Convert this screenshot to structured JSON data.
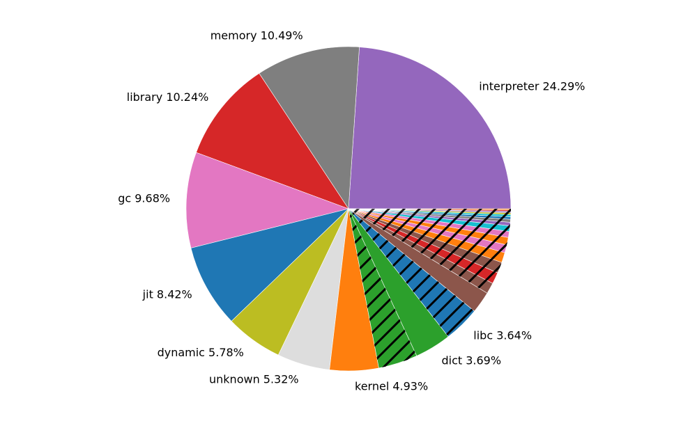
{
  "chart_data": {
    "type": "pie",
    "start_angle_deg": 0,
    "direction": "counterclockwise",
    "slices": [
      {
        "label": "interpreter 24.29%",
        "value": 24.29,
        "color": "#9467bd",
        "hatch": false,
        "show_label": true
      },
      {
        "label": "memory 10.49%",
        "value": 10.49,
        "color": "#7f7f7f",
        "hatch": false,
        "show_label": true
      },
      {
        "label": "library 10.24%",
        "value": 10.24,
        "color": "#d62728",
        "hatch": false,
        "show_label": true
      },
      {
        "label": "gc 9.68%",
        "value": 9.68,
        "color": "#e377c2",
        "hatch": false,
        "show_label": true
      },
      {
        "label": "jit 8.42%",
        "value": 8.42,
        "color": "#1f77b4",
        "hatch": false,
        "show_label": true
      },
      {
        "label": "dynamic 5.78%",
        "value": 5.78,
        "color": "#bcbd22",
        "hatch": false,
        "show_label": true
      },
      {
        "label": "unknown 5.32%",
        "value": 5.32,
        "color": "#dddddd",
        "hatch": false,
        "show_label": true
      },
      {
        "label": "kernel 4.93%",
        "value": 4.93,
        "color": "#ff7f0e",
        "hatch": false,
        "show_label": true
      },
      {
        "label": "",
        "value": 3.97,
        "color": "#2ca02c",
        "hatch": true,
        "show_label": false
      },
      {
        "label": "dict 3.69%",
        "value": 3.69,
        "color": "#2ca02c",
        "hatch": false,
        "show_label": true
      },
      {
        "label": "libc 3.64%",
        "value": 3.64,
        "color": "#1f77b4",
        "hatch": true,
        "show_label": true
      },
      {
        "label": "",
        "value": 2.2,
        "color": "#8c564b",
        "hatch": false,
        "show_label": false
      },
      {
        "label": "",
        "value": 1.12,
        "color": "#8c564b",
        "hatch": true,
        "show_label": false
      },
      {
        "label": "",
        "value": 1.16,
        "color": "#d62728",
        "hatch": true,
        "show_label": false
      },
      {
        "label": "",
        "value": 1.11,
        "color": "#8c564b",
        "hatch": true,
        "show_label": false
      },
      {
        "label": "",
        "value": 1.02,
        "color": "#ff7f0e",
        "hatch": true,
        "show_label": false
      },
      {
        "label": "",
        "value": 0.8,
        "color": "#e377c2",
        "hatch": true,
        "show_label": false
      },
      {
        "label": "",
        "value": 0.75,
        "color": "#ff7f0e",
        "hatch": true,
        "show_label": false
      },
      {
        "label": "",
        "value": 0.61,
        "color": "#e377c2",
        "hatch": true,
        "show_label": false
      },
      {
        "label": "",
        "value": 0.57,
        "color": "#17becf",
        "hatch": true,
        "show_label": false
      },
      {
        "label": "",
        "value": 0.35,
        "color": "#9467bd",
        "hatch": true,
        "show_label": false
      },
      {
        "label": "",
        "value": 0.3,
        "color": "#7f7f7f",
        "hatch": true,
        "show_label": false
      },
      {
        "label": "",
        "value": 0.25,
        "color": "#1f77b4",
        "hatch": true,
        "show_label": false
      },
      {
        "label": "",
        "value": 0.22,
        "color": "#17becf",
        "hatch": true,
        "show_label": false
      },
      {
        "label": "",
        "value": 0.18,
        "color": "#bcbd22",
        "hatch": true,
        "show_label": false
      },
      {
        "label": "",
        "value": 0.15,
        "color": "#9467bd",
        "hatch": true,
        "show_label": false
      },
      {
        "label": "",
        "value": 0.14,
        "color": "#d62728",
        "hatch": true,
        "show_label": false
      },
      {
        "label": "",
        "value": 0.11,
        "color": "#ff7f0e",
        "hatch": true,
        "show_label": false
      }
    ]
  }
}
